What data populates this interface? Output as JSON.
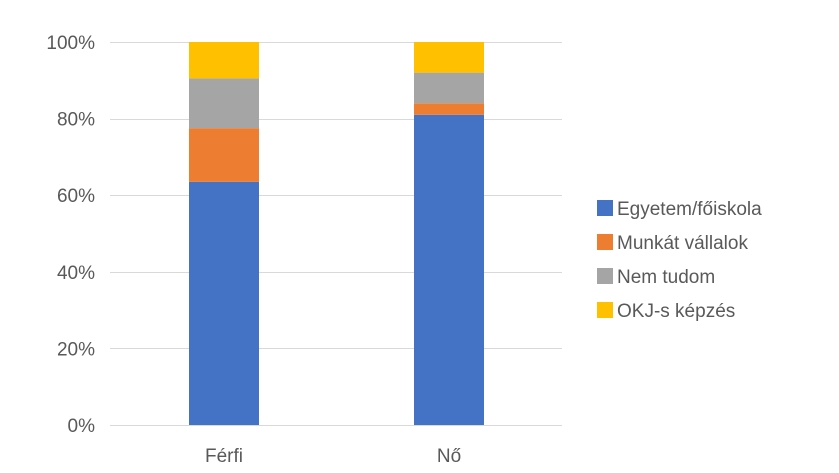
{
  "chart_data": {
    "type": "bar",
    "stacked": true,
    "percent": true,
    "categories": [
      "Férfi",
      "Nő"
    ],
    "series": [
      {
        "name": "Egyetem/főiskola",
        "color": "#4472C4",
        "values": [
          63.5,
          81
        ]
      },
      {
        "name": "Munkát vállalok",
        "color": "#ED7D31",
        "values": [
          14,
          3
        ]
      },
      {
        "name": "Nem tudom",
        "color": "#A5A5A5",
        "values": [
          13,
          8
        ]
      },
      {
        "name": "OKJ-s képzés",
        "color": "#FFC000",
        "values": [
          9.5,
          8
        ]
      }
    ],
    "ylim": [
      0,
      100
    ],
    "y_ticks": [
      "0%",
      "20%",
      "40%",
      "60%",
      "80%",
      "100%"
    ],
    "y_tick_values": [
      0,
      20,
      40,
      60,
      80,
      100
    ],
    "grid": true,
    "legend_position": "right",
    "title": "",
    "xlabel": "",
    "ylabel": ""
  }
}
